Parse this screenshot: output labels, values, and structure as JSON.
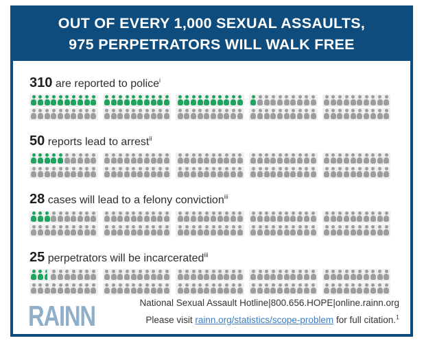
{
  "header": {
    "title_line1": "OUT OF EVERY 1,000 SEXUAL ASSAULTS,",
    "title_line2": "975 PERPETRATORS WILL WALK FREE"
  },
  "chart_data": {
    "type": "pictograph",
    "title": "OUT OF EVERY 1,000 SEXUAL ASSAULTS, 975 PERPETRATORS WILL WALK FREE",
    "total_units": 1000,
    "units_per_icon": 10,
    "icons_per_row": 100,
    "lines_per_row": 2,
    "groups_per_line": 5,
    "icons_per_group": 10,
    "rows": [
      {
        "value": "310",
        "label": "are reported to police",
        "citation": "i",
        "green_icons": 31
      },
      {
        "value": "50",
        "label": "reports lead to arrest",
        "citation": "ii",
        "green_icons": 5
      },
      {
        "value": "28",
        "label": "cases will lead to a felony conviction",
        "citation": "iii",
        "green_icons": 3
      },
      {
        "value": "25",
        "label": "perpetrators will be incarcerated",
        "citation": "iii",
        "green_icons": 2.5
      }
    ],
    "colors": {
      "highlight_green": "#1FA45F",
      "muted_gray": "#9D9D9D",
      "group_background": "#EFEFEF"
    }
  },
  "footer": {
    "logo_text": "RAINN",
    "hotline_line": "National Sexual Assault Hotline|800.656.HOPE|online.rainn.org",
    "citation_prefix": "Please visit ",
    "citation_link": "rainn.org/statistics/scope-problem",
    "citation_suffix": " for full citation.",
    "citation_superscript": "1"
  },
  "colors": {
    "brand_blue": "#0E4C7D",
    "logo_blue": "#8FAEC9",
    "link_blue": "#3C7DBF"
  }
}
